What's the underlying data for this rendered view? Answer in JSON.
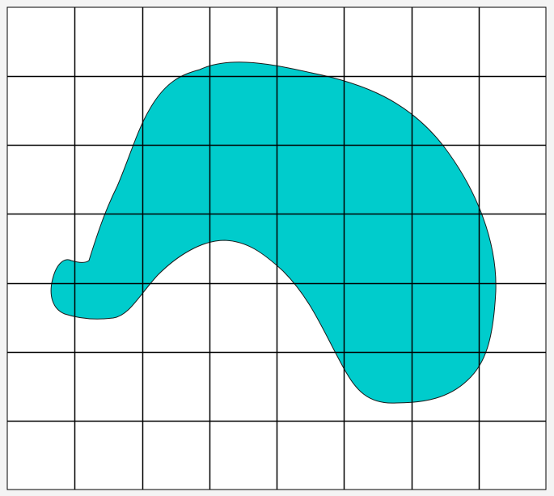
{
  "diagram": {
    "grid": {
      "columns": 8,
      "rows": 7,
      "line_color": "#000000"
    },
    "shape": {
      "fill_color": "#00CCCC",
      "outline_color": "#1a1a1a"
    },
    "background_color": "#ffffff"
  }
}
